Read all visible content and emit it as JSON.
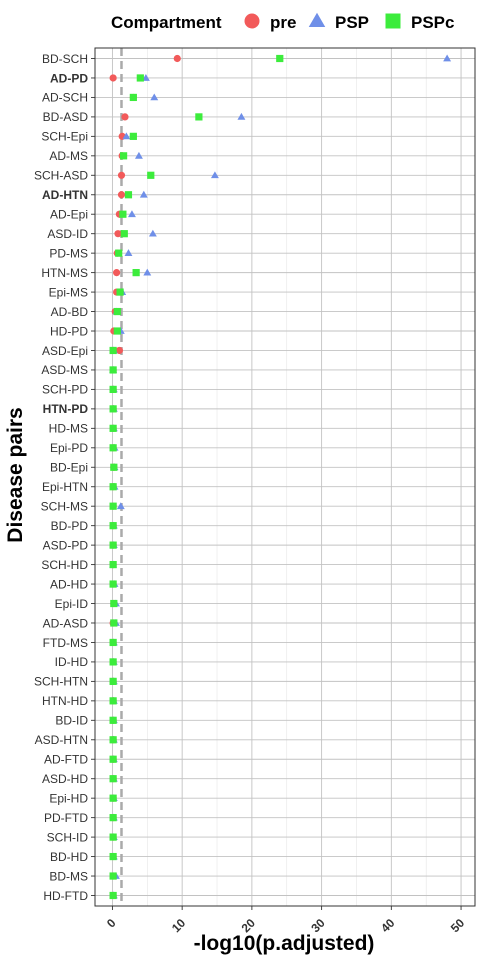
{
  "chart_data": {
    "type": "scatter",
    "xlabel": "-log10(p.adjusted)",
    "ylabel": "Disease pairs",
    "xlim": [
      -2.5,
      52
    ],
    "xticks": [
      0,
      10,
      20,
      30,
      40,
      50
    ],
    "grid": true,
    "reference_line_x": 1.3,
    "legend": {
      "title": "Compartment",
      "position": "top",
      "entries": [
        {
          "name": "pre",
          "shape": "circle",
          "color": "#f25a5a"
        },
        {
          "name": "PSP",
          "shape": "triangle",
          "color": "#6f8fe8"
        },
        {
          "name": "PSPc",
          "shape": "square",
          "color": "#3cec3c"
        }
      ]
    },
    "categories": [
      "BD-SCH",
      "AD-PD",
      "AD-SCH",
      "BD-ASD",
      "SCH-Epi",
      "AD-MS",
      "SCH-ASD",
      "AD-HTN",
      "AD-Epi",
      "ASD-ID",
      "PD-MS",
      "HTN-MS",
      "Epi-MS",
      "AD-BD",
      "HD-PD",
      "ASD-Epi",
      "ASD-MS",
      "SCH-PD",
      "HTN-PD",
      "HD-MS",
      "Epi-PD",
      "BD-Epi",
      "Epi-HTN",
      "SCH-MS",
      "BD-PD",
      "ASD-PD",
      "SCH-HD",
      "AD-HD",
      "Epi-ID",
      "AD-ASD",
      "FTD-MS",
      "ID-HD",
      "SCH-HTN",
      "HTN-HD",
      "BD-ID",
      "ASD-HTN",
      "AD-FTD",
      "ASD-HD",
      "Epi-HD",
      "PD-FTD",
      "SCH-ID",
      "BD-HD",
      "BD-MS",
      "HD-FTD"
    ],
    "bold_categories": [
      "AD-PD",
      "AD-HTN",
      "HTN-PD"
    ],
    "series": [
      {
        "name": "pre",
        "values": [
          9.3,
          0.1,
          3.0,
          1.8,
          1.4,
          1.4,
          1.3,
          1.3,
          1.0,
          0.8,
          0.7,
          0.6,
          0.6,
          0.4,
          0.2,
          1.0,
          0.1,
          0.1,
          0.1,
          0.1,
          0.1,
          0.2,
          0.1,
          0.1,
          0.1,
          0.1,
          0.1,
          0.1,
          0.2,
          0.1,
          0.1,
          0.1,
          0.1,
          0.1,
          0.1,
          0.1,
          0.1,
          0.1,
          0.1,
          0.1,
          0.1,
          0.1,
          0.1,
          0.1
        ]
      },
      {
        "name": "PSP",
        "values": [
          48.0,
          4.8,
          6.0,
          18.5,
          2.0,
          3.8,
          14.7,
          4.5,
          2.8,
          5.8,
          2.3,
          5.0,
          1.4,
          0.6,
          1.2,
          0.2,
          0.1,
          0.2,
          0.2,
          0.2,
          0.3,
          0.3,
          0.3,
          1.2,
          0.2,
          0.2,
          0.1,
          0.3,
          0.5,
          0.5,
          0.2,
          0.2,
          0.2,
          0.2,
          0.2,
          0.2,
          0.2,
          0.2,
          0.2,
          0.2,
          0.2,
          0.2,
          0.5,
          0.2
        ]
      },
      {
        "name": "PSPc",
        "values": [
          24.0,
          4.0,
          3.0,
          12.4,
          3.0,
          1.6,
          5.5,
          2.3,
          1.5,
          1.7,
          0.9,
          3.4,
          1.1,
          0.7,
          0.7,
          0.1,
          0.1,
          0.1,
          0.1,
          0.1,
          0.1,
          0.2,
          0.1,
          0.1,
          0.1,
          0.1,
          0.1,
          0.1,
          0.2,
          0.2,
          0.1,
          0.1,
          0.1,
          0.1,
          0.1,
          0.1,
          0.1,
          0.1,
          0.1,
          0.1,
          0.1,
          0.1,
          0.1,
          0.1
        ]
      }
    ]
  }
}
